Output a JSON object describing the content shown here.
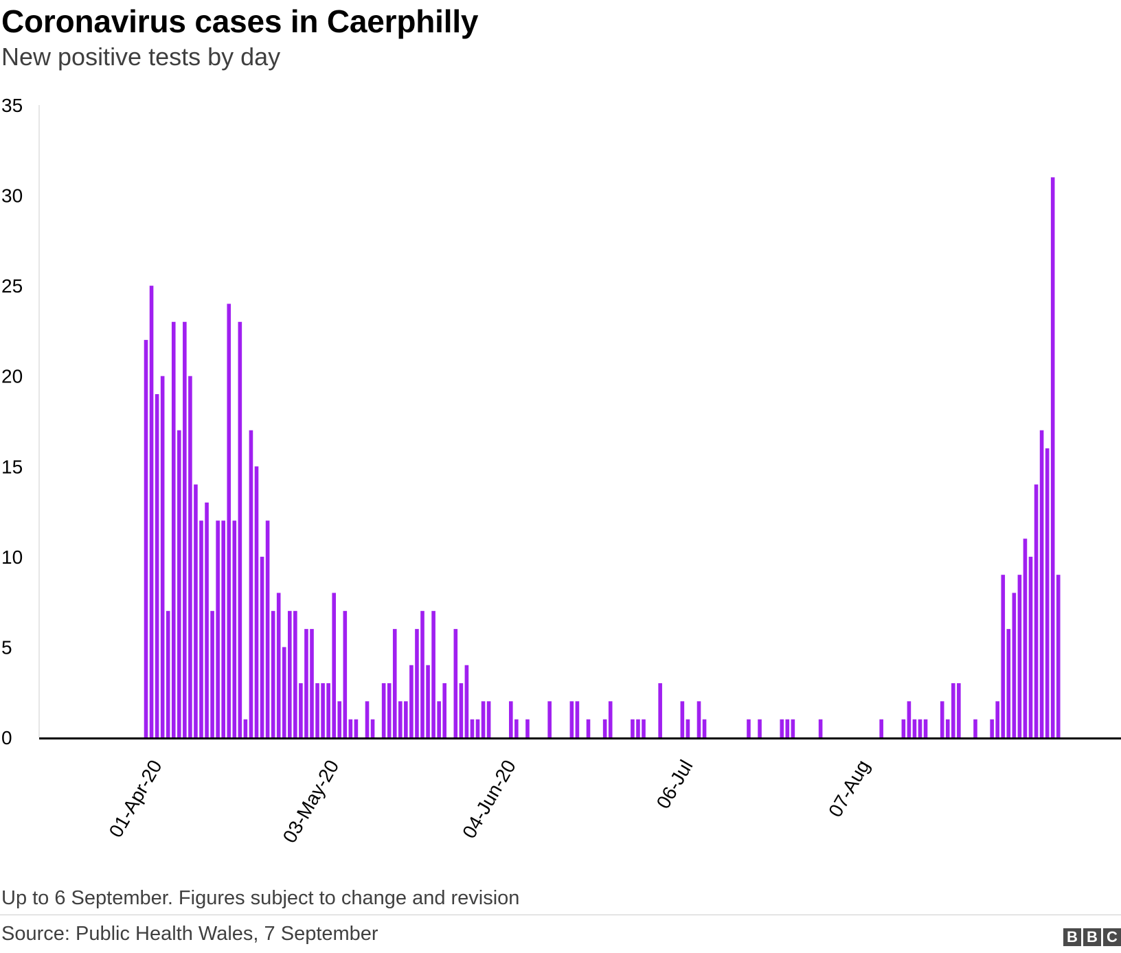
{
  "title": "Coronavirus cases in Caerphilly",
  "subtitle": "New positive tests by day",
  "footnote": "Up to 6 September. Figures subject to change and revision",
  "source": "Source: Public Health Wales, 7 September",
  "logo": [
    "B",
    "B",
    "C"
  ],
  "colors": {
    "bar": "#a020f0",
    "axis": "#000000"
  },
  "chart_data": {
    "type": "bar",
    "title": "Coronavirus cases in Caerphilly",
    "subtitle": "New positive tests by day",
    "xlabel": "",
    "ylabel": "",
    "ylim": [
      0,
      35
    ],
    "yticks": [
      0,
      5,
      10,
      15,
      20,
      25,
      30,
      35
    ],
    "grid": false,
    "legend": "none",
    "start_date": "2020-03-12",
    "end_date": "2020-09-06",
    "xtick_labels": [
      {
        "date": "2020-04-01",
        "label": "01-Apr-20"
      },
      {
        "date": "2020-05-03",
        "label": "03-May-20"
      },
      {
        "date": "2020-06-04",
        "label": "04-Jun-20"
      },
      {
        "date": "2020-07-06",
        "label": "06-Jul"
      },
      {
        "date": "2020-08-07",
        "label": "07-Aug"
      }
    ],
    "values": [
      0,
      0,
      0,
      0,
      0,
      0,
      0,
      0,
      0,
      0,
      0,
      0,
      0,
      0,
      0,
      0,
      0,
      0,
      0,
      22,
      25,
      19,
      20,
      7,
      23,
      17,
      23,
      20,
      14,
      12,
      13,
      7,
      12,
      12,
      24,
      12,
      23,
      1,
      17,
      15,
      10,
      12,
      7,
      8,
      5,
      7,
      7,
      3,
      6,
      6,
      3,
      3,
      3,
      8,
      2,
      7,
      1,
      1,
      0,
      2,
      1,
      0,
      3,
      3,
      6,
      2,
      2,
      4,
      6,
      7,
      4,
      7,
      2,
      3,
      0,
      6,
      3,
      4,
      1,
      1,
      2,
      2,
      0,
      0,
      0,
      2,
      1,
      0,
      1,
      0,
      0,
      0,
      2,
      0,
      0,
      0,
      2,
      2,
      0,
      1,
      0,
      0,
      1,
      2,
      0,
      0,
      0,
      1,
      1,
      1,
      0,
      0,
      3,
      0,
      0,
      0,
      2,
      1,
      0,
      2,
      1,
      0,
      0,
      0,
      0,
      0,
      0,
      0,
      1,
      0,
      1,
      0,
      0,
      0,
      1,
      1,
      1,
      0,
      0,
      0,
      0,
      1,
      0,
      0,
      0,
      0,
      0,
      0,
      0,
      0,
      0,
      0,
      1,
      0,
      0,
      0,
      1,
      2,
      1,
      1,
      1,
      0,
      0,
      2,
      1,
      3,
      3,
      0,
      0,
      1,
      0,
      0,
      1,
      2,
      9,
      6,
      8,
      9,
      11,
      10,
      14,
      17,
      16,
      31,
      9
    ]
  }
}
